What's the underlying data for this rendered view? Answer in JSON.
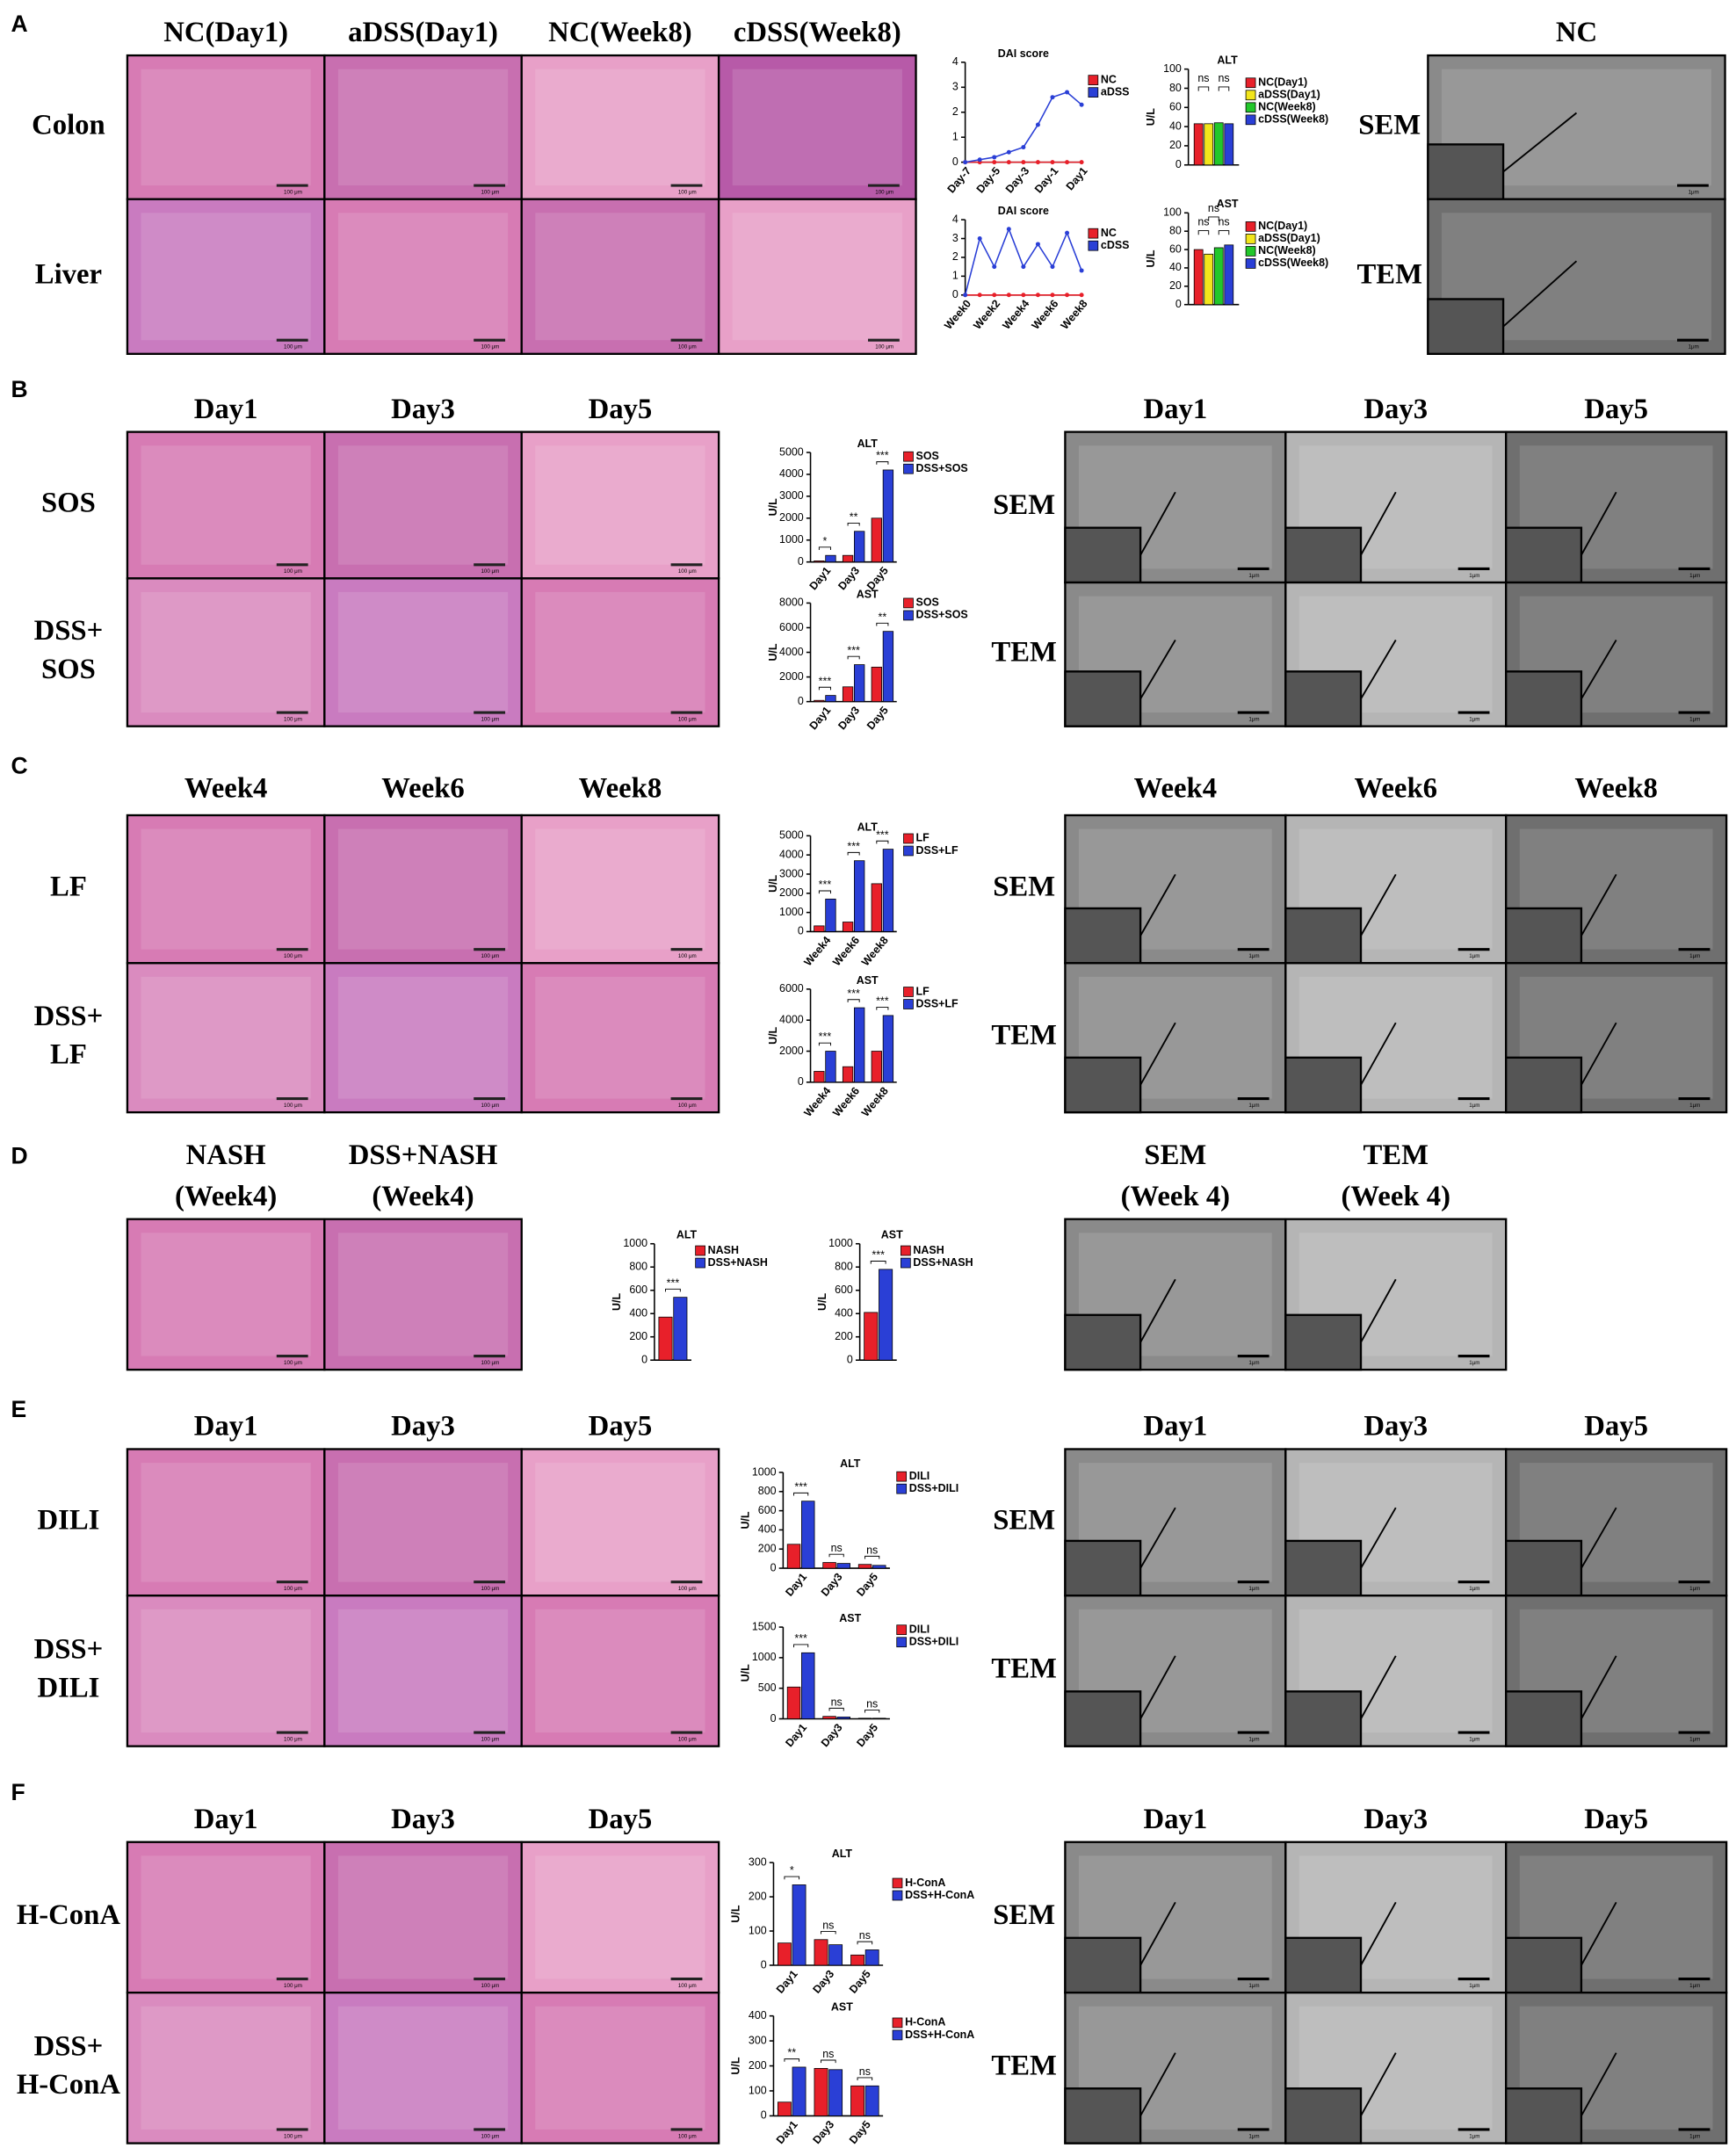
{
  "he_scale": "100 μm",
  "em_scale": "1μm",
  "panels": [
    {
      "label": "A",
      "he": {
        "columns": [
          "NC(Day1)",
          "aDSS(Day1)",
          "NC(Week8)",
          "cDSS(Week8)"
        ],
        "rows": [
          "Colon",
          "Liver"
        ]
      },
      "em": {
        "columns": [
          "NC"
        ],
        "rows": [
          "SEM",
          "TEM"
        ]
      },
      "charts": [
        {
          "type": "line",
          "title": "DAI score",
          "categories": [
            "Day-7",
            null,
            "Day-5",
            null,
            "Day-3",
            null,
            "Day-1",
            null,
            "Day1"
          ],
          "series": [
            {
              "name": "NC",
              "color": "#e8202a",
              "values": [
                0,
                0,
                0,
                0,
                0,
                0,
                0,
                0,
                0
              ]
            },
            {
              "name": "aDSS",
              "color": "#2a3fd6",
              "values": [
                0,
                0.1,
                0.2,
                0.4,
                0.6,
                1.5,
                2.6,
                2.8,
                2.3
              ]
            }
          ],
          "ylim": [
            0,
            4
          ],
          "yticks": [
            0,
            1,
            2,
            3,
            4
          ]
        },
        {
          "type": "line",
          "title": "DAI score",
          "categories": [
            "Week0",
            null,
            "Week2",
            null,
            "Week4",
            null,
            "Week6",
            null,
            "Week8"
          ],
          "series": [
            {
              "name": "NC",
              "color": "#e8202a",
              "values": [
                0,
                0,
                0,
                0,
                0,
                0,
                0,
                0,
                0
              ]
            },
            {
              "name": "cDSS",
              "color": "#2a3fd6",
              "values": [
                0,
                3,
                1.5,
                3.5,
                1.5,
                2.7,
                1.5,
                3.3,
                1.3
              ]
            }
          ],
          "ylim": [
            0,
            4
          ],
          "yticks": [
            0,
            1,
            2,
            3,
            4
          ]
        },
        {
          "type": "bar",
          "title": "ALT",
          "ylabel": "U/L",
          "categories": [
            null
          ],
          "series": [
            {
              "name": "NC(Day1)",
              "color": "#e8202a",
              "values": [
                43
              ]
            },
            {
              "name": "aDSS(Day1)",
              "color": "#f2e51b",
              "values": [
                43
              ]
            },
            {
              "name": "NC(Week8)",
              "color": "#22c72a",
              "values": [
                44
              ]
            },
            {
              "name": "cDSS(Week8)",
              "color": "#2a3fd6",
              "values": [
                43
              ]
            }
          ],
          "ylim": [
            0,
            100
          ],
          "yticks": [
            0,
            20,
            40,
            60,
            80,
            100
          ],
          "annotations": [
            "ns",
            "ns"
          ]
        },
        {
          "type": "bar",
          "title": "AST",
          "ylabel": "U/L",
          "categories": [
            null
          ],
          "series": [
            {
              "name": "NC(Day1)",
              "color": "#e8202a",
              "values": [
                60
              ]
            },
            {
              "name": "aDSS(Day1)",
              "color": "#f2e51b",
              "values": [
                55
              ]
            },
            {
              "name": "NC(Week8)",
              "color": "#22c72a",
              "values": [
                62
              ]
            },
            {
              "name": "cDSS(Week8)",
              "color": "#2a3fd6",
              "values": [
                65
              ]
            }
          ],
          "ylim": [
            0,
            100
          ],
          "yticks": [
            0,
            20,
            40,
            60,
            80,
            100
          ],
          "annotations": [
            "ns",
            "ns",
            "ns"
          ]
        }
      ]
    },
    {
      "label": "B",
      "he": {
        "columns": [
          "Day1",
          "Day3",
          "Day5"
        ],
        "rows": [
          [
            "SOS"
          ],
          [
            "DSS+",
            "SOS"
          ]
        ]
      },
      "em": {
        "columns": [
          "Day1",
          "Day3",
          "Day5"
        ],
        "rows": [
          "SEM",
          "TEM"
        ]
      },
      "charts": [
        {
          "type": "bar",
          "title": "ALT",
          "ylabel": "U/L",
          "categories": [
            "Day1",
            "Day3",
            "Day5"
          ],
          "series": [
            {
              "name": "SOS",
              "color": "#e8202a",
              "values": [
                50,
                300,
                2000
              ]
            },
            {
              "name": "DSS+SOS",
              "color": "#2a3fd6",
              "values": [
                300,
                1400,
                4200
              ]
            }
          ],
          "ylim": [
            0,
            5000
          ],
          "yticks": [
            0,
            1000,
            2000,
            3000,
            4000,
            5000
          ],
          "annotations": [
            "*",
            "**",
            "***"
          ]
        },
        {
          "type": "bar",
          "title": "AST",
          "ylabel": "U/L",
          "categories": [
            "Day1",
            "Day3",
            "Day5"
          ],
          "series": [
            {
              "name": "SOS",
              "color": "#e8202a",
              "values": [
                100,
                1200,
                2800
              ]
            },
            {
              "name": "DSS+SOS",
              "color": "#2a3fd6",
              "values": [
                500,
                3000,
                5700
              ]
            }
          ],
          "ylim": [
            0,
            8000
          ],
          "yticks": [
            0,
            2000,
            4000,
            6000,
            8000
          ],
          "annotations": [
            "***",
            "***",
            "**"
          ]
        }
      ]
    },
    {
      "label": "C",
      "he": {
        "columns": [
          "Week4",
          "Week6",
          "Week8"
        ],
        "rows": [
          [
            "LF"
          ],
          [
            "DSS+",
            "LF"
          ]
        ]
      },
      "em": {
        "columns": [
          "Week4",
          "Week6",
          "Week8"
        ],
        "rows": [
          "SEM",
          "TEM"
        ]
      },
      "charts": [
        {
          "type": "bar",
          "title": "ALT",
          "ylabel": "U/L",
          "categories": [
            "Week4",
            "Week6",
            "Week8"
          ],
          "series": [
            {
              "name": "LF",
              "color": "#e8202a",
              "values": [
                300,
                500,
                2500
              ]
            },
            {
              "name": "DSS+LF",
              "color": "#2a3fd6",
              "values": [
                1700,
                3700,
                4300
              ]
            }
          ],
          "ylim": [
            0,
            5000
          ],
          "yticks": [
            0,
            1000,
            2000,
            3000,
            4000,
            5000
          ],
          "annotations": [
            "***",
            "***",
            "***"
          ]
        },
        {
          "type": "bar",
          "title": "AST",
          "ylabel": "U/L",
          "categories": [
            "Week4",
            "Week6",
            "Week8"
          ],
          "series": [
            {
              "name": "LF",
              "color": "#e8202a",
              "values": [
                700,
                1000,
                2000
              ]
            },
            {
              "name": "DSS+LF",
              "color": "#2a3fd6",
              "values": [
                2000,
                4800,
                4300
              ]
            }
          ],
          "ylim": [
            0,
            6000
          ],
          "yticks": [
            0,
            2000,
            4000,
            6000
          ],
          "annotations": [
            "***",
            "***",
            "***"
          ]
        }
      ]
    },
    {
      "label": "D",
      "he": {
        "columns": [
          [
            "NASH",
            "(Week4)"
          ],
          [
            "DSS+NASH",
            "(Week4)"
          ]
        ],
        "rows": []
      },
      "em": {
        "columns": [
          [
            "SEM",
            "(Week 4)"
          ],
          [
            "TEM",
            "(Week 4)"
          ]
        ],
        "rows": []
      },
      "charts": [
        {
          "type": "bar",
          "title": "ALT",
          "ylabel": "U/L",
          "categories": [
            null
          ],
          "series": [
            {
              "name": "NASH",
              "color": "#e8202a",
              "values": [
                370
              ]
            },
            {
              "name": "DSS+NASH",
              "color": "#2a3fd6",
              "values": [
                540
              ]
            }
          ],
          "ylim": [
            0,
            1000
          ],
          "yticks": [
            0,
            200,
            400,
            600,
            800,
            1000
          ],
          "annotations": [
            "***"
          ]
        },
        {
          "type": "bar",
          "title": "AST",
          "ylabel": "U/L",
          "categories": [
            null
          ],
          "series": [
            {
              "name": "NASH",
              "color": "#e8202a",
              "values": [
                410
              ]
            },
            {
              "name": "DSS+NASH",
              "color": "#2a3fd6",
              "values": [
                780
              ]
            }
          ],
          "ylim": [
            0,
            1000
          ],
          "yticks": [
            0,
            200,
            400,
            600,
            800,
            1000
          ],
          "annotations": [
            "***"
          ]
        }
      ]
    },
    {
      "label": "E",
      "he": {
        "columns": [
          "Day1",
          "Day3",
          "Day5"
        ],
        "rows": [
          [
            "DILI"
          ],
          [
            "DSS+",
            "DILI"
          ]
        ]
      },
      "em": {
        "columns": [
          "Day1",
          "Day3",
          "Day5"
        ],
        "rows": [
          "SEM",
          "TEM"
        ]
      },
      "charts": [
        {
          "type": "bar",
          "title": "ALT",
          "ylabel": "U/L",
          "categories": [
            "Day1",
            "Day3",
            "Day5"
          ],
          "series": [
            {
              "name": "DILI",
              "color": "#e8202a",
              "values": [
                250,
                60,
                40
              ]
            },
            {
              "name": "DSS+DILI",
              "color": "#2a3fd6",
              "values": [
                700,
                50,
                30
              ]
            }
          ],
          "ylim": [
            0,
            1000
          ],
          "yticks": [
            0,
            200,
            400,
            600,
            800,
            1000
          ],
          "annotations": [
            "***",
            "ns",
            "ns"
          ]
        },
        {
          "type": "bar",
          "title": "AST",
          "ylabel": "U/L",
          "categories": [
            "Day1",
            "Day3",
            "Day5"
          ],
          "series": [
            {
              "name": "DILI",
              "color": "#e8202a",
              "values": [
                520,
                40,
                10
              ]
            },
            {
              "name": "DSS+DILI",
              "color": "#2a3fd6",
              "values": [
                1080,
                30,
                10
              ]
            }
          ],
          "ylim": [
            0,
            1500
          ],
          "yticks": [
            0,
            500,
            1000,
            1500
          ],
          "annotations": [
            "***",
            "ns",
            "ns"
          ]
        }
      ]
    },
    {
      "label": "F",
      "he": {
        "columns": [
          "Day1",
          "Day3",
          "Day5"
        ],
        "rows": [
          [
            "H-ConA"
          ],
          [
            "DSS+",
            "H-ConA"
          ]
        ]
      },
      "em": {
        "columns": [
          "Day1",
          "Day3",
          "Day5"
        ],
        "rows": [
          "SEM",
          "TEM"
        ]
      },
      "charts": [
        {
          "type": "bar",
          "title": "ALT",
          "ylabel": "U/L",
          "categories": [
            "Day1",
            "Day3",
            "Day5"
          ],
          "series": [
            {
              "name": "H-ConA",
              "color": "#e8202a",
              "values": [
                65,
                75,
                30
              ]
            },
            {
              "name": "DSS+H-ConA",
              "color": "#2a3fd6",
              "values": [
                235,
                60,
                45
              ]
            }
          ],
          "ylim": [
            0,
            300
          ],
          "yticks": [
            0,
            100,
            200,
            300
          ],
          "annotations": [
            "*",
            "ns",
            "ns"
          ]
        },
        {
          "type": "bar",
          "title": "AST",
          "ylabel": "U/L",
          "categories": [
            "Day1",
            "Day3",
            "Day5"
          ],
          "series": [
            {
              "name": "H-ConA",
              "color": "#e8202a",
              "values": [
                55,
                190,
                120
              ]
            },
            {
              "name": "DSS+H-ConA",
              "color": "#2a3fd6",
              "values": [
                195,
                185,
                120
              ]
            }
          ],
          "ylim": [
            0,
            400
          ],
          "yticks": [
            0,
            100,
            200,
            300,
            400
          ],
          "annotations": [
            "**",
            "ns",
            "ns"
          ]
        }
      ]
    }
  ]
}
